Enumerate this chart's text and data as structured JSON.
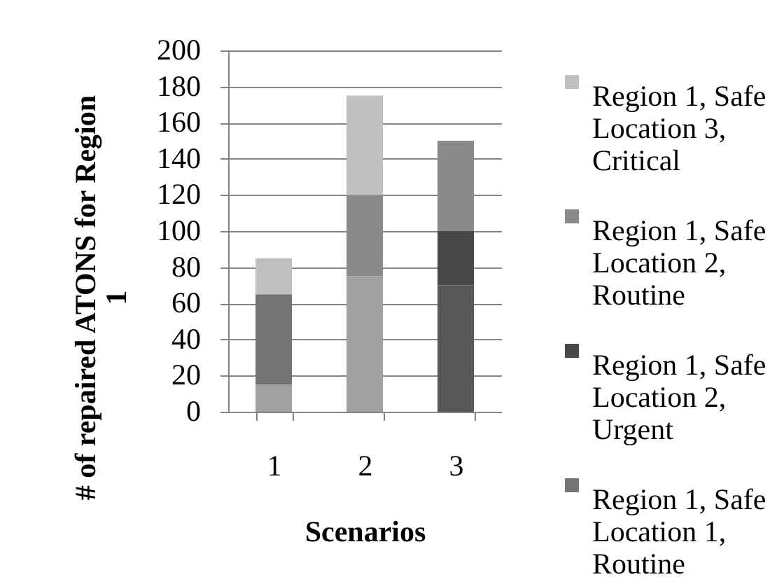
{
  "chart_data": {
    "type": "bar",
    "stacked": true,
    "xlabel": "Scenarios",
    "ylabel": "# of repaired ATONS for Region 1",
    "categories": [
      "1",
      "2",
      "3"
    ],
    "ylim": [
      0,
      200
    ],
    "yticks": [
      0,
      20,
      40,
      60,
      80,
      100,
      120,
      140,
      160,
      180,
      200
    ],
    "grid": "y",
    "legend": "right",
    "series": [
      {
        "color": "#a0a0a0",
        "values": [
          15,
          75,
          null
        ]
      },
      {
        "color": "#575757",
        "values": [
          null,
          null,
          70
        ]
      },
      {
        "name": "Region 1, Safe Location 1, Routine",
        "color": "#747474",
        "values": [
          50,
          null,
          null
        ]
      },
      {
        "name": "Region 1, Safe Location 2, Urgent",
        "color": "#484848",
        "values": [
          null,
          null,
          30
        ]
      },
      {
        "name": "Region 1, Safe Location 2, Routine",
        "color": "#8a8a8a",
        "values": [
          null,
          45,
          50
        ]
      },
      {
        "name": "Region 1, Safe Location 3, Critical",
        "color": "#c0c0c0",
        "values": [
          20,
          55,
          null
        ]
      }
    ]
  }
}
